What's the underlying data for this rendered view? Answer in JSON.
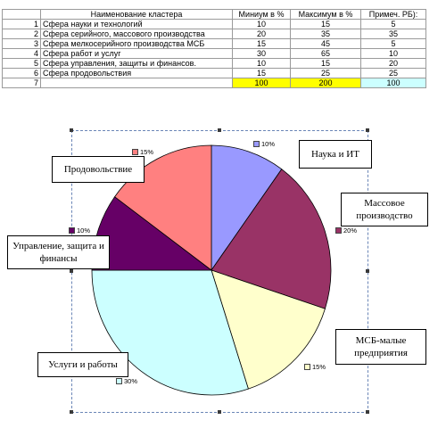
{
  "table": {
    "headers": [
      "",
      "Наименование кластера",
      "Миниум в %",
      "Максимум в %",
      "Примеч. РБ):"
    ],
    "rows": [
      {
        "n": "1",
        "name": "Сфера науки и технологий",
        "min": "10",
        "max": "15",
        "note": "5"
      },
      {
        "n": "2",
        "name": "Сфера  серийного,  массового производства",
        "min": "20",
        "max": "35",
        "note": "35"
      },
      {
        "n": "3",
        "name": "Сфера мелкосерийного производства МСБ",
        "min": "15",
        "max": "45",
        "note": "5"
      },
      {
        "n": "4",
        "name": "Сфера работ и услуг",
        "min": "30",
        "max": "65",
        "note": "10"
      },
      {
        "n": "5",
        "name": "Сфера управления, защиты и финансов.",
        "min": "10",
        "max": "15",
        "note": "20"
      },
      {
        "n": "6",
        "name": "Сфера продовольствия",
        "min": "15",
        "max": "25",
        "note": "25"
      },
      {
        "n": "7",
        "name": "",
        "min": "100",
        "max": "200",
        "note": "100"
      }
    ]
  },
  "chart_data": {
    "type": "pie",
    "categories": [
      "Наука и ИТ",
      "Массовое производство",
      "МСБ-малые предприятия",
      "Услуги и работы",
      "Управление, защита и финансы",
      "Продовольствие"
    ],
    "values": [
      10,
      20,
      15,
      30,
      10,
      15
    ],
    "value_labels": [
      "10%",
      "20%",
      "15%",
      "30%",
      "10%",
      "15%"
    ],
    "colors": [
      "#9999ff",
      "#993366",
      "#ffffcc",
      "#ccffff",
      "#660066",
      "#ff8080"
    ],
    "legend": "none"
  },
  "callouts": {
    "nauka": "Наука и ИТ",
    "massovoe": "Массовое производство",
    "msb": "МСБ-малые предприятия",
    "uslugi": "Услуги и работы",
    "upravlenie": "Управление, защита и финансы",
    "prod": "Продовольствие"
  }
}
